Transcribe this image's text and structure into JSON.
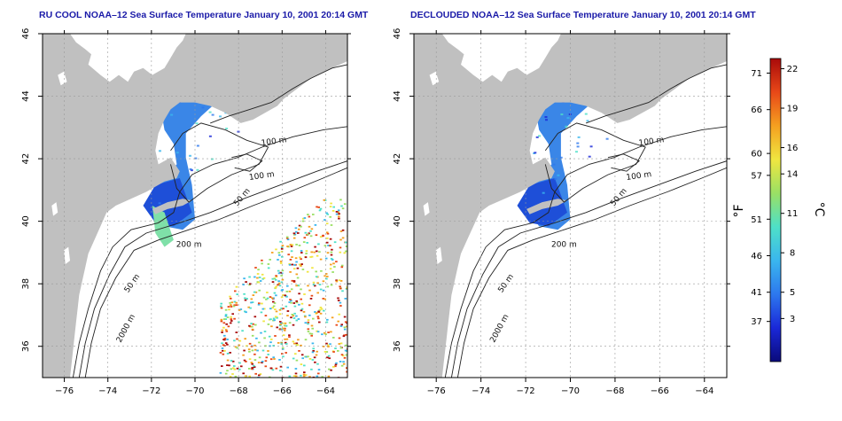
{
  "maps": [
    {
      "title": "RU COOL NOAA–12 Sea Surface Temperature January 10, 2001 20:14 GMT",
      "variant": "raw",
      "contour_labels": [
        "100 m",
        "100 m",
        "50 m",
        "200 m",
        "50 m",
        "2000 m"
      ]
    },
    {
      "title": "DECLOUDED NOAA–12 Sea Surface Temperature January 10, 2001 20:14 GMT",
      "variant": "declouded",
      "contour_labels": [
        "100 m",
        "100 m",
        "50 m",
        "200 m",
        "50 m",
        "2000 m"
      ]
    }
  ],
  "axes": {
    "x_ticks": [
      "−76",
      "−74",
      "−72",
      "−70",
      "−68",
      "−66",
      "−64"
    ],
    "y_ticks": [
      "36",
      "38",
      "40",
      "42",
      "44",
      "46"
    ],
    "lon_range": [
      -77.0,
      -63.0
    ],
    "lat_range": [
      35.0,
      46.0
    ],
    "grid": "dotted"
  },
  "colorbar": {
    "fahrenheit_label": "°F",
    "celsius_label": "°C",
    "fahrenheit_ticks": [
      "71",
      "66",
      "60",
      "57",
      "51",
      "46",
      "41",
      "37"
    ],
    "celsius_ticks": [
      "22",
      "19",
      "16",
      "14",
      "11",
      "8",
      "5",
      "3"
    ],
    "colors": [
      "#0a0a7a",
      "#1a28d8",
      "#2d78ee",
      "#3ab6ee",
      "#4ee0c8",
      "#9ae064",
      "#f0e640",
      "#f5a020",
      "#e84818",
      "#a80a0a"
    ]
  },
  "palette": {
    "land": "#c0c0c0",
    "title_color": "#1a1aa8"
  }
}
